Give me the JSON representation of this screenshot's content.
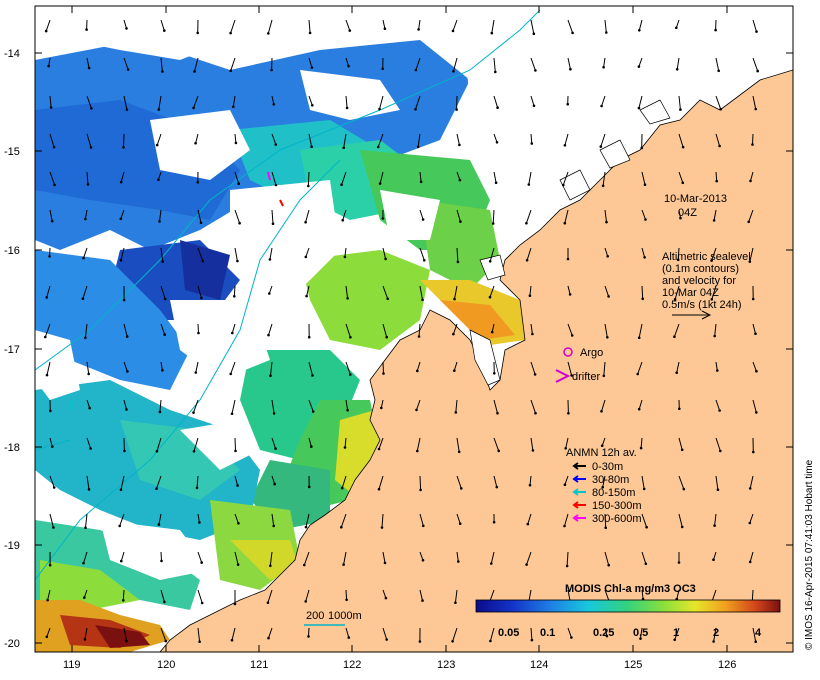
{
  "map": {
    "date_label": "10-Mar-2013",
    "time_label": "04Z",
    "altimetry_note": [
      "Altimetric sealevel",
      "(0.1m contours)",
      "and velocity for",
      "10-Mar 04Z",
      "0.5m/s (1kt 24h)"
    ],
    "markers": {
      "argo_label": "Argo",
      "drifter_label": "drifter"
    },
    "anmn_legend": {
      "title": "ANMN 12h av.",
      "entries": [
        {
          "label": "0-30m",
          "color": "#000000"
        },
        {
          "label": "30-80m",
          "color": "#0000ff"
        },
        {
          "label": "80-150m",
          "color": "#00c8c8"
        },
        {
          "label": "150-300m",
          "color": "#ff0000"
        },
        {
          "label": "300-600m",
          "color": "#ff00ff"
        }
      ]
    },
    "depth_legend": {
      "labels": [
        "200",
        "1000m"
      ],
      "color": "#00b4c8"
    },
    "colorbar": {
      "title": "MODIS Chl-a mg/m3 OC3",
      "ticks": [
        "0.05",
        "0.1",
        "0.25",
        "0.5",
        "1",
        "2",
        "4"
      ]
    },
    "axes": {
      "lat_ticks": [
        "-14",
        "-15",
        "-16",
        "-17",
        "-18",
        "-19",
        "-20"
      ],
      "lon_ticks": [
        "119",
        "120",
        "121",
        "122",
        "123",
        "124",
        "125",
        "126"
      ]
    },
    "credit": "© IMOS 16-Apr-2015 07:41:03 Hobart time",
    "colors": {
      "land": "#fdc896",
      "no_data": "#ffffff",
      "coastline": "#000000"
    }
  }
}
